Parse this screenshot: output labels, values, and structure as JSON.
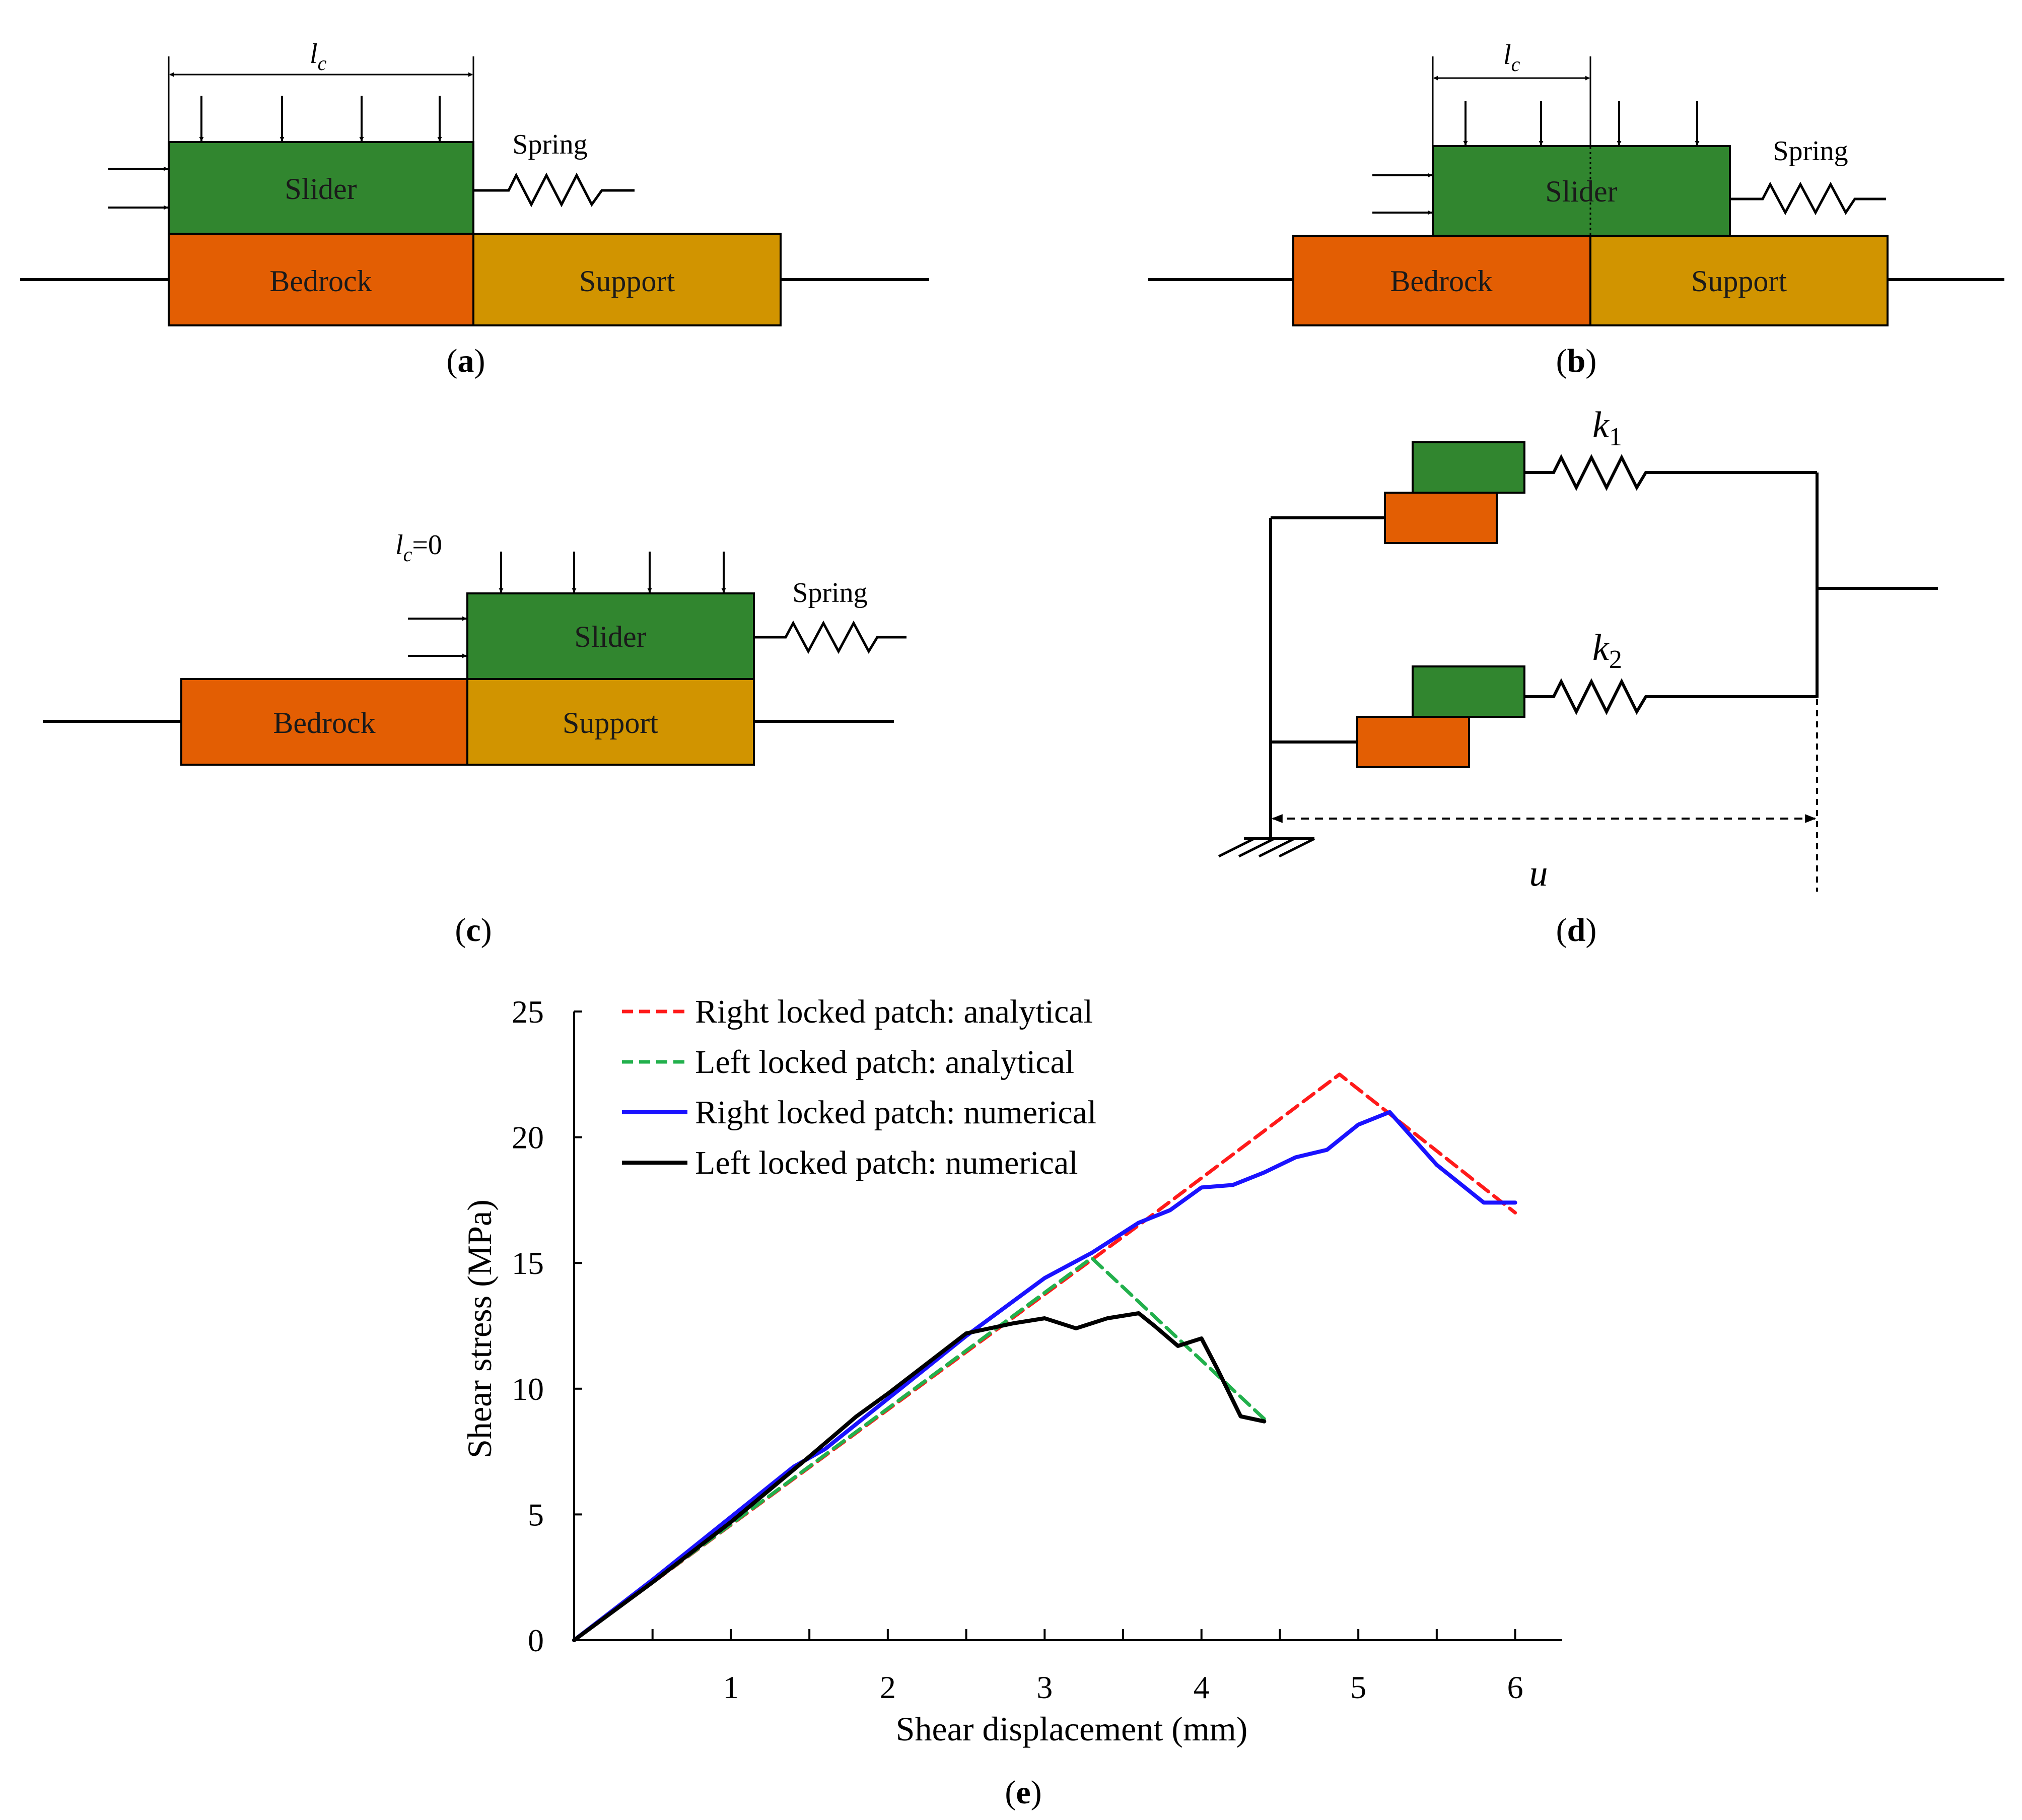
{
  "colors": {
    "slider": "#31862f",
    "bedrock": "#e35e03",
    "support": "#d19400",
    "stroke": "#000000",
    "red": "#ff1a1a",
    "green": "#22b04c",
    "blue": "#1a12ff",
    "black": "#000000"
  },
  "panel_a": {
    "caption_open": "(",
    "caption_letter": "a",
    "caption_close": ")",
    "lc_base": "l",
    "lc_sub": "c",
    "slider": "Slider",
    "bedrock": "Bedrock",
    "support": "Support",
    "spring": "Spring"
  },
  "panel_b": {
    "caption_open": "(",
    "caption_letter": "b",
    "caption_close": ")",
    "lc_base": "l",
    "lc_sub": "c",
    "slider": "Slider",
    "bedrock": "Bedrock",
    "support": "Support",
    "spring": "Spring"
  },
  "panel_c": {
    "caption_open": "(",
    "caption_letter": "c",
    "caption_close": ")",
    "lc_base": "l",
    "lc_sub": "c",
    "lc_value": "=0",
    "slider": "Slider",
    "bedrock": "Bedrock",
    "support": "Support",
    "spring": "Spring"
  },
  "panel_d": {
    "caption_open": "(",
    "caption_letter": "d",
    "caption_close": ")",
    "k1_base": "k",
    "k1_sub": "1",
    "k2_base": "k",
    "k2_sub": "2",
    "u": "u"
  },
  "panel_e": {
    "caption_open": "(",
    "caption_letter": "e",
    "caption_close": ")"
  },
  "chart_data": {
    "type": "line",
    "title": "",
    "xlabel": "Shear displacement (mm)",
    "ylabel": "Shear stress (MPa)",
    "xlim": [
      0,
      6.3
    ],
    "ylim": [
      0,
      25
    ],
    "x_ticks": [
      1,
      2,
      3,
      4,
      5,
      6
    ],
    "y_ticks": [
      0,
      5,
      10,
      15,
      20,
      25
    ],
    "legend_position": "top-left",
    "series": [
      {
        "name": "Right locked patch: analytical",
        "color": "#ff1a1a",
        "style": "dashed",
        "x": [
          0,
          3.6,
          4.88,
          6.0
        ],
        "y": [
          0,
          16.5,
          22.5,
          17.0
        ]
      },
      {
        "name": "Left locked patch: analytical",
        "color": "#22b04c",
        "style": "dashed",
        "x": [
          0,
          3.3,
          4.4
        ],
        "y": [
          0,
          15.2,
          8.8
        ]
      },
      {
        "name": "Right locked patch: numerical",
        "color": "#1a12ff",
        "style": "solid",
        "x": [
          0,
          0.5,
          1.0,
          1.4,
          1.6,
          2.0,
          2.5,
          3.0,
          3.3,
          3.6,
          3.8,
          4.0,
          4.2,
          4.4,
          4.6,
          4.8,
          5.0,
          5.2,
          5.5,
          5.8,
          6.0
        ],
        "y": [
          0,
          2.4,
          4.9,
          6.9,
          7.6,
          9.6,
          12.1,
          14.4,
          15.4,
          16.6,
          17.1,
          18.0,
          18.1,
          18.6,
          19.2,
          19.5,
          20.5,
          21.0,
          18.9,
          17.4,
          17.4
        ]
      },
      {
        "name": "Left locked patch: numerical",
        "color": "#000000",
        "style": "solid",
        "x": [
          0,
          0.5,
          1.0,
          1.5,
          1.8,
          2.0,
          2.5,
          2.8,
          3.0,
          3.2,
          3.4,
          3.6,
          3.7,
          3.85,
          4.0,
          4.1,
          4.25,
          4.4
        ],
        "y": [
          0,
          2.3,
          4.7,
          7.3,
          8.9,
          9.8,
          12.2,
          12.6,
          12.8,
          12.4,
          12.8,
          13.0,
          12.5,
          11.7,
          12.0,
          10.8,
          8.9,
          8.7
        ]
      }
    ]
  }
}
